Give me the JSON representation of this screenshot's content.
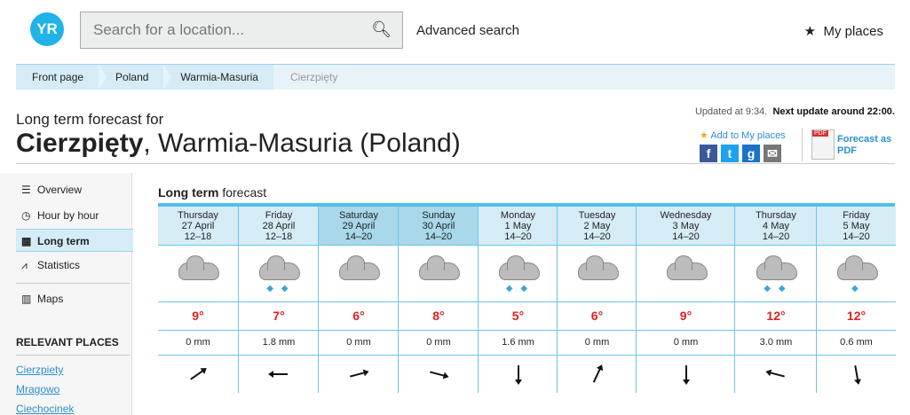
{
  "header": {
    "logo": "YR",
    "search_placeholder": "Search for a location...",
    "search_icon": "search-icon",
    "advanced_search": "Advanced search",
    "my_places": "My places"
  },
  "breadcrumb": [
    "Front page",
    "Poland",
    "Warmia-Masuria",
    "Cierzpięty"
  ],
  "title": {
    "prefix": "Long term forecast for",
    "place": "Cierzpięty",
    "rest": ", Warmia-Masuria (Poland)"
  },
  "update": {
    "updated": "Updated at 9:34.",
    "next": "Next update around 22:00."
  },
  "actions": {
    "add": "Add to My places",
    "pdf_line1": "Forecast as",
    "pdf_line2": "PDF",
    "pdf_icon_text": "PDF"
  },
  "sidebar": {
    "items": [
      {
        "label": "Overview",
        "icon": "list-icon"
      },
      {
        "label": "Hour by hour",
        "icon": "clock-icon"
      },
      {
        "label": "Long term",
        "icon": "calendar-icon",
        "active": true
      },
      {
        "label": "Statistics",
        "icon": "chart-icon"
      },
      {
        "label": "Maps",
        "icon": "map-icon"
      }
    ],
    "relevant_heading": "RELEVANT PLACES",
    "relevant": [
      "Cierzpiety",
      "Mragowo",
      "Ciechocinek"
    ]
  },
  "forecast": {
    "heading_bold": "Long term",
    "heading_rest": " forecast",
    "days": [
      {
        "day": "Thursday",
        "date": "27 April",
        "time": "12–18",
        "temp": "9°",
        "precip": "0 mm",
        "rain": false,
        "wind_deg": -35
      },
      {
        "day": "Friday",
        "date": "28 April",
        "time": "12–18",
        "temp": "7°",
        "precip": "1.8 mm",
        "rain": true,
        "wind_deg": 180
      },
      {
        "day": "Saturday",
        "date": "29 April",
        "time": "14–20",
        "temp": "6°",
        "precip": "0 mm",
        "rain": false,
        "wind_deg": -15,
        "selected": true
      },
      {
        "day": "Sunday",
        "date": "30 April",
        "time": "14–20",
        "temp": "8°",
        "precip": "0 mm",
        "rain": false,
        "wind_deg": 15,
        "selected": true
      },
      {
        "day": "Monday",
        "date": "1 May",
        "time": "14–20",
        "temp": "5°",
        "precip": "1.6 mm",
        "rain": true,
        "wind_deg": 90
      },
      {
        "day": "Tuesday",
        "date": "2 May",
        "time": "14–20",
        "temp": "6°",
        "precip": "0 mm",
        "rain": false,
        "wind_deg": -65
      },
      {
        "day": "Wednesday",
        "date": "3 May",
        "time": "14–20",
        "temp": "9°",
        "precip": "0 mm",
        "rain": false,
        "wind_deg": 90
      },
      {
        "day": "Thursday",
        "date": "4 May",
        "time": "14–20",
        "temp": "12°",
        "precip": "3.0 mm",
        "rain": true,
        "wind_deg": -165
      },
      {
        "day": "Friday",
        "date": "5 May",
        "time": "14–20",
        "temp": "12°",
        "precip": "0.6 mm",
        "rain": true,
        "rain_single": true,
        "wind_deg": 80
      }
    ]
  },
  "colors": {
    "accent": "#1fb3e8",
    "temp": "#e02020",
    "link": "#2b8fcf",
    "table_border": "#6cc6ea"
  }
}
